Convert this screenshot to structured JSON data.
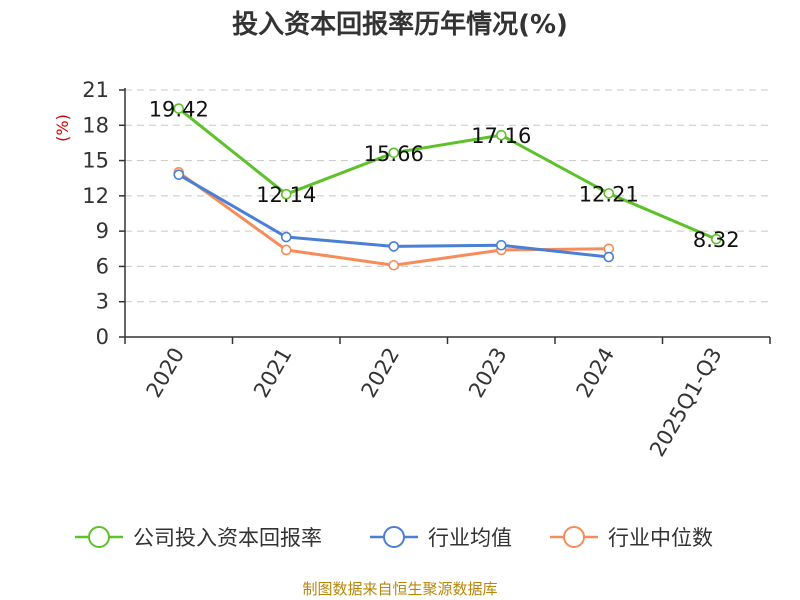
{
  "chart_data": {
    "type": "line",
    "title": "投入资本回报率历年情况(%)",
    "ylabel": "(%)",
    "xlabel": "",
    "categories": [
      "2020",
      "2021",
      "2022",
      "2023",
      "2024",
      "2025Q1-Q3"
    ],
    "ylim": [
      0,
      21
    ],
    "yticks": [
      "0",
      "3",
      "6",
      "9",
      "12",
      "15",
      "18",
      "21"
    ],
    "grid": "horizontal-dashed",
    "legend_position": "bottom",
    "series": [
      {
        "name": "公司投入资本回报率",
        "color": "#5ec12a",
        "values": [
          19.42,
          12.14,
          15.66,
          17.16,
          12.21,
          8.32
        ],
        "labels": [
          "19.42",
          "12.14",
          "15.66",
          "17.16",
          "12.21",
          "8.32"
        ]
      },
      {
        "name": "行业均值",
        "color": "#4a7fd6",
        "values": [
          13.8,
          8.5,
          7.7,
          7.8,
          6.8,
          null
        ]
      },
      {
        "name": "行业中位数",
        "color": "#f58c5a",
        "values": [
          14.0,
          7.4,
          6.1,
          7.4,
          7.5,
          null
        ]
      }
    ]
  },
  "source": "制图数据来自恒生聚源数据库"
}
